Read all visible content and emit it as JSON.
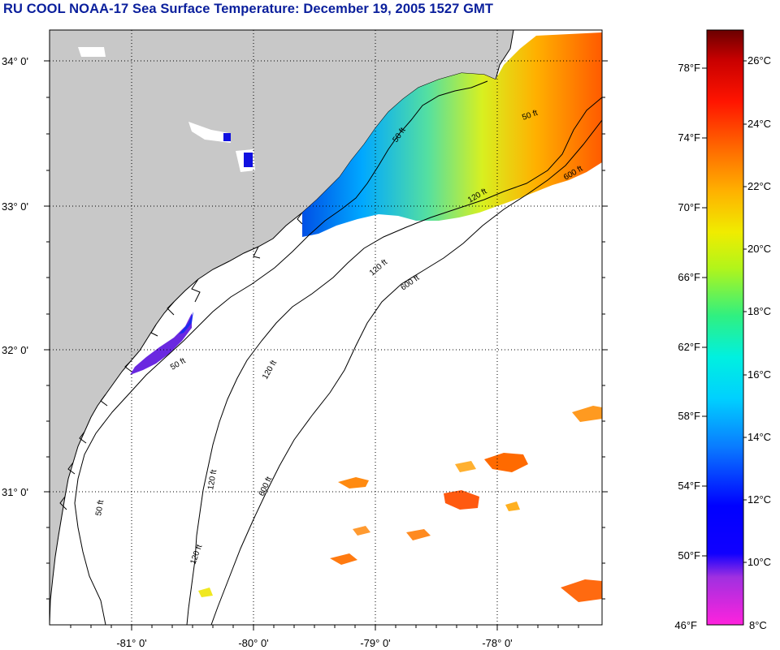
{
  "title": "RU COOL  NOAA-17  Sea Surface Temperature:  December 19, 2005 1527 GMT",
  "map": {
    "lat_labels": [
      "34° 0'",
      "33° 0'",
      "32° 0'",
      "31° 0'"
    ],
    "lon_labels": [
      "-81° 0'",
      "-80° 0'",
      "-79° 0'",
      "-78° 0'"
    ],
    "contours": [
      {
        "label": "50 ft"
      },
      {
        "label": "120 ft"
      },
      {
        "label": "600 ft"
      }
    ]
  },
  "colorbar": {
    "fahrenheit_labels": [
      "78°F",
      "74°F",
      "70°F",
      "66°F",
      "62°F",
      "58°F",
      "54°F",
      "50°F",
      "46°F"
    ],
    "celsius_labels": [
      "26°C",
      "24°C",
      "22°C",
      "20°C",
      "18°C",
      "16°C",
      "14°C",
      "12°C",
      "10°C",
      "8°C"
    ],
    "range_celsius": [
      8,
      27
    ],
    "stops": [
      "#ff22dd",
      "#8a2be2",
      "#0000ff",
      "#0a7cff",
      "#00e8ff",
      "#27f28a",
      "#b2f51a",
      "#f0ec00",
      "#ffa000",
      "#ff5a00",
      "#ff1400",
      "#d40000",
      "#6a0000"
    ]
  },
  "colors": {
    "land": "#c8c8c8",
    "ocean": "#ffffff",
    "title": "#0a1f9c"
  }
}
